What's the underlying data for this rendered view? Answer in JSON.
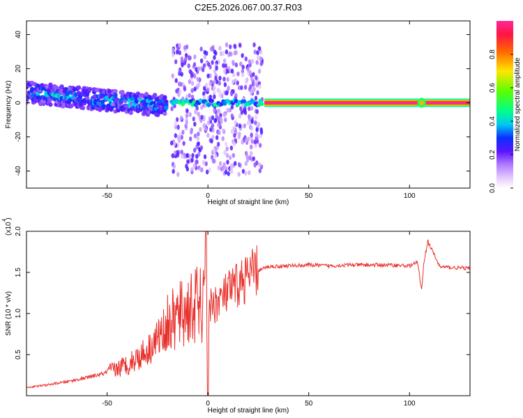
{
  "title": "C2E5.2026.067.00.37.R03",
  "chart_data": [
    {
      "type": "heatmap",
      "xlabel": "Height of straight line (km)",
      "ylabel": "Frequency (Hz)",
      "xlim": [
        -90,
        130
      ],
      "ylim": [
        -50,
        48
      ],
      "xticks": [
        "-50",
        "0",
        "50",
        "100"
      ],
      "xtick_values": [
        -50,
        0,
        50,
        100
      ],
      "yticks": [
        "40",
        "20",
        "0",
        "-20",
        "-40"
      ],
      "ytick_values": [
        40,
        20,
        0,
        -20,
        -40
      ],
      "colorbar": {
        "label": "Normalized spectral amplitude",
        "range": [
          0,
          1
        ],
        "ticks": [
          "0.0",
          "0.2",
          "0.4",
          "0.6",
          "0.8"
        ],
        "tick_values": [
          0.0,
          0.2,
          0.4,
          0.6,
          0.8
        ]
      },
      "description_regions": [
        {
          "x": [
            -90,
            -20
          ],
          "freq_center_start": 6,
          "freq_center_end": -2,
          "spread": 6
        },
        {
          "x": [
            -18,
            27
          ],
          "freq_range": [
            -42,
            34
          ],
          "scatter": true
        },
        {
          "x": [
            28,
            130
          ],
          "freq": 0,
          "amplitude": 1.0,
          "bump_at": 106
        }
      ]
    },
    {
      "type": "line",
      "xlabel": "Height of straight line (km)",
      "ylabel": "SNR (10 * v/v)",
      "yscale_note": "(x10 )",
      "yscale_exp": "4",
      "xlim": [
        -90,
        130
      ],
      "ylim": [
        0,
        2.0
      ],
      "xticks": [
        "-50",
        "0",
        "50",
        "100"
      ],
      "xtick_values": [
        -50,
        0,
        50,
        100
      ],
      "yticks": [
        "2.0",
        "1.5",
        "1.0",
        "0.5"
      ],
      "ytick_values": [
        2.0,
        1.5,
        1.0,
        0.5
      ],
      "series": [
        {
          "color": "#e8302c",
          "x": [
            -90,
            -80,
            -70,
            -60,
            -50,
            -40,
            -30,
            -25,
            -20,
            -15,
            -10,
            -5,
            0,
            5,
            10,
            15,
            20,
            25,
            30,
            40,
            50,
            60,
            70,
            80,
            90,
            100,
            104,
            106,
            107,
            109,
            115,
            120,
            130
          ],
          "y": [
            0.1,
            0.13,
            0.17,
            0.22,
            0.28,
            0.38,
            0.55,
            0.7,
            0.85,
            0.95,
            1.05,
            1.1,
            1.05,
            1.15,
            1.25,
            1.35,
            1.45,
            1.52,
            1.57,
            1.58,
            1.59,
            1.58,
            1.59,
            1.59,
            1.59,
            1.58,
            1.62,
            1.28,
            1.6,
            1.88,
            1.57,
            1.56,
            1.55
          ]
        }
      ]
    }
  ]
}
